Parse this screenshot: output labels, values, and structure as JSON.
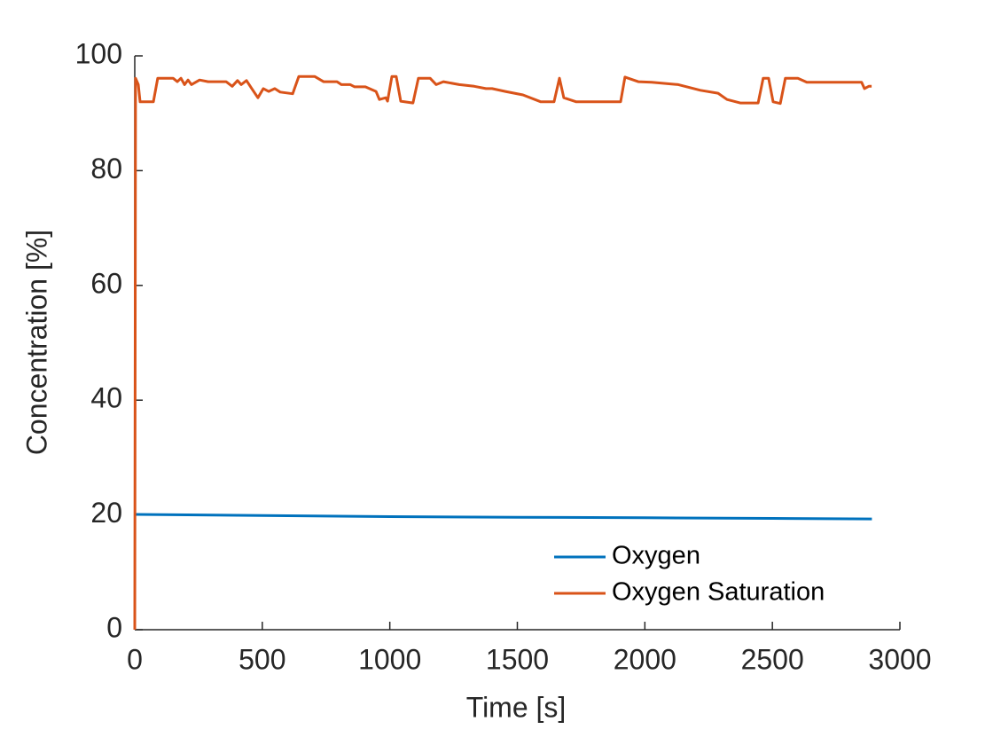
{
  "chart_data": {
    "type": "line",
    "xlabel": "Time [s]",
    "ylabel": "Concentration [%]",
    "xlim": [
      0,
      3000
    ],
    "xticks": [
      0,
      500,
      1000,
      1500,
      2000,
      2500,
      3000
    ],
    "ylim": [
      0,
      100
    ],
    "yticks": [
      0,
      20,
      40,
      60,
      80,
      100
    ],
    "grid": false,
    "legend": "southeast",
    "series": [
      {
        "name": "Oxygen",
        "color": "#0072BD",
        "x": [
          0,
          500,
          1000,
          1500,
          2000,
          2500,
          2890
        ],
        "values": [
          20.1,
          19.9,
          19.7,
          19.6,
          19.5,
          19.4,
          19.3
        ]
      },
      {
        "name": "Oxygen Saturation",
        "color": "#D95319",
        "x": [
          0,
          3,
          14,
          21,
          73,
          90,
          150,
          167,
          181,
          195,
          209,
          222,
          254,
          288,
          358,
          382,
          403,
          417,
          438,
          459,
          483,
          504,
          525,
          549,
          570,
          619,
          643,
          706,
          740,
          793,
          810,
          845,
          862,
          904,
          946,
          959,
          984,
          991,
          1008,
          1025,
          1043,
          1091,
          1112,
          1158,
          1182,
          1210,
          1272,
          1331,
          1377,
          1401,
          1453,
          1522,
          1592,
          1644,
          1665,
          1682,
          1731,
          1905,
          1922,
          1974,
          2027,
          2131,
          2218,
          2287,
          2322,
          2374,
          2444,
          2464,
          2485,
          2503,
          2531,
          2551,
          2600,
          2635,
          2704,
          2850,
          2861,
          2878,
          2889
        ],
        "values": [
          0,
          96.1,
          95,
          92,
          92,
          96.1,
          96.1,
          95.5,
          96.1,
          95,
          95.8,
          95,
          95.8,
          95.5,
          95.5,
          94.7,
          95.7,
          95,
          95.7,
          94.3,
          92.7,
          94.3,
          93.8,
          94.3,
          93.7,
          93.4,
          96.4,
          96.4,
          95.5,
          95.5,
          95,
          95,
          94.6,
          94.6,
          93.8,
          92.4,
          92.7,
          92.1,
          96.4,
          96.4,
          92.1,
          91.8,
          96.1,
          96.1,
          95,
          95.5,
          95,
          94.7,
          94.3,
          94.3,
          93.8,
          93.2,
          92,
          92,
          96.1,
          92.7,
          92,
          92,
          96.3,
          95.5,
          95.4,
          95,
          94,
          93.5,
          92.4,
          91.8,
          91.8,
          96.1,
          96.1,
          92,
          91.7,
          96.1,
          96.1,
          95.4,
          95.4,
          95.4,
          94.3,
          94.7,
          94.7
        ]
      }
    ]
  }
}
